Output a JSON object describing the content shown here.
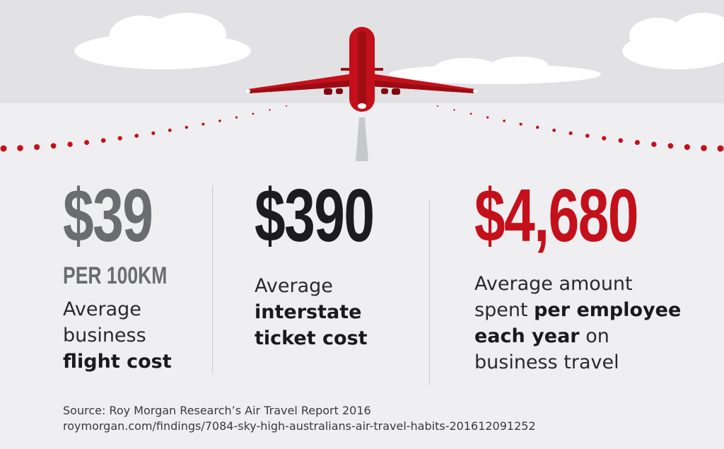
{
  "colors": {
    "accent": "#c4101a",
    "grey_stat": "#6b6c6f",
    "dark_stat": "#1c1c1e",
    "sky": "#e2e2e5",
    "ground": "#efeff2"
  },
  "icons": [
    "plane-icon",
    "cloud-icon",
    "runway-light-icon"
  ],
  "stats": [
    {
      "value": "$39",
      "unit": "PER 100KM",
      "lines": [
        [
          "Average",
          ""
        ],
        [
          "business",
          ""
        ],
        [
          "",
          "flight cost"
        ]
      ]
    },
    {
      "value": "$390",
      "lines": [
        [
          "Average",
          ""
        ],
        [
          "",
          "interstate"
        ],
        [
          "",
          "ticket cost"
        ]
      ]
    },
    {
      "value": "$4,680",
      "lines": [
        [
          "Average amount",
          ""
        ],
        [
          "spent ",
          "per employee"
        ],
        [
          "",
          "each year",
          " on"
        ],
        [
          "business travel",
          ""
        ]
      ]
    }
  ],
  "source": {
    "line1": "Source: Roy Morgan Research’s Air Travel Report 2016",
    "line2": "roymorgan.com/findings/7084-sky-high-australians-air-travel-habits-201612091252"
  }
}
